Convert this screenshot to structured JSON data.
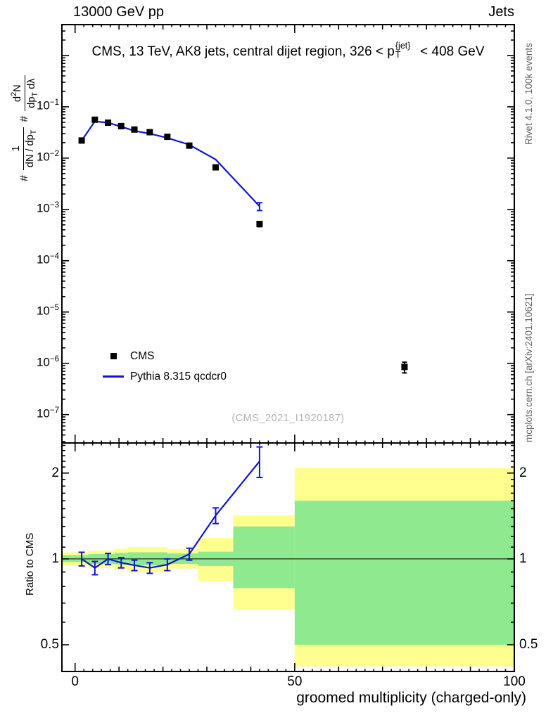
{
  "header": {
    "left": "13000 GeV pp",
    "right": "Jets"
  },
  "titles": {
    "main_prefix": "CMS, 13 TeV, AK8 jets, central dijet region, 326 < p",
    "main_p_sup": "{jet}",
    "main_p_sub": "T",
    "main_suffix": " < 408 GeV",
    "watermark": "(CMS_2021_I1920187)",
    "x_axis": "groomed multiplicity (charged-only)",
    "ratio_y_axis": "Ratio to CMS",
    "credit_top": "Rivet 4.1.0, 100k events",
    "credit_bottom": "mcplots.cern.ch [arXiv:2401.10621]"
  },
  "y_axis_label": {
    "hash1": "#",
    "frac1_num": "1",
    "frac1_den_a": "dN / dp",
    "frac1_den_sub": "T",
    "hash2": "#",
    "frac2_num_a": "d",
    "frac2_num_sup": "2",
    "frac2_num_b": "N",
    "frac2_den_a": "dp",
    "frac2_den_sub": "T",
    "frac2_den_b": " dλ"
  },
  "legend": [
    {
      "label": "CMS",
      "type": "marker"
    },
    {
      "label": "Pythia 8.315 qcdcr0",
      "type": "line"
    }
  ],
  "colors": {
    "model": "#1414cc",
    "data": "#000000",
    "band_outer": "#ffff8f",
    "band_inner": "#8fe98f",
    "watermark": "#b4b4b4",
    "credits": "#666666"
  },
  "chart_data": [
    {
      "type": "line",
      "panel": "main",
      "title": "CMS, 13 TeV, AK8 jets, central dijet region, 326 < pT{jet} < 408 GeV",
      "yscale": "log",
      "xlim": [
        -3,
        100
      ],
      "ylim": [
        2.8e-08,
        4.0
      ],
      "ytick_exponents": [
        -1,
        -2,
        -3,
        -4,
        -5,
        -6,
        -7
      ],
      "xticks": [
        0,
        50,
        100
      ],
      "series": [
        {
          "name": "CMS",
          "type": "scatter",
          "marker": "filled-square",
          "color": "#000000",
          "x": [
            1.5,
            4.5,
            7.5,
            10.5,
            13.5,
            17,
            21,
            26,
            32,
            42,
            75
          ],
          "y": [
            0.022,
            0.056,
            0.049,
            0.042,
            0.036,
            0.032,
            0.026,
            0.0175,
            0.0066,
            0.00052,
            8.5e-07
          ],
          "yerr": [
            0.0012,
            0.0018,
            0.0015,
            0.0013,
            0.0011,
            0.001,
            0.0009,
            0.0007,
            0.0004,
            6e-05,
            2e-07
          ]
        },
        {
          "name": "Pythia 8.315 qcdcr0",
          "type": "line",
          "color": "#1414cc",
          "x": [
            1.5,
            4.5,
            7.5,
            10.5,
            13.5,
            17,
            21,
            26,
            32,
            42
          ],
          "y": [
            0.022,
            0.052,
            0.049,
            0.041,
            0.034,
            0.03,
            0.0248,
            0.0182,
            0.0094,
            0.00115
          ],
          "yerr": [
            0,
            0,
            0,
            0,
            0,
            0,
            0,
            0,
            0,
            0.0002
          ]
        }
      ]
    },
    {
      "type": "ratio",
      "panel": "ratio",
      "yscale": "log",
      "xlim": [
        -3,
        100
      ],
      "ylim": [
        0.403,
        2.55
      ],
      "yticks": [
        0.5,
        1,
        2
      ],
      "xticks": [
        0,
        50,
        100
      ],
      "reference_y": 1,
      "bands": [
        {
          "x0": -3,
          "x1": 3,
          "outer": [
            0.95,
            1.055
          ],
          "inner": [
            0.975,
            1.03
          ]
        },
        {
          "x0": 3,
          "x1": 9,
          "outer": [
            0.93,
            1.07
          ],
          "inner": [
            0.96,
            1.04
          ]
        },
        {
          "x0": 9,
          "x1": 12,
          "outer": [
            0.915,
            1.085
          ],
          "inner": [
            0.955,
            1.05
          ]
        },
        {
          "x0": 12,
          "x1": 21,
          "outer": [
            0.9,
            1.1
          ],
          "inner": [
            0.95,
            1.055
          ]
        },
        {
          "x0": 21,
          "x1": 28,
          "outer": [
            0.925,
            1.08
          ],
          "inner": [
            0.96,
            1.045
          ]
        },
        {
          "x0": 28,
          "x1": 36,
          "outer": [
            0.835,
            1.185
          ],
          "inner": [
            0.945,
            1.06
          ]
        },
        {
          "x0": 36,
          "x1": 50,
          "outer": [
            0.665,
            1.42
          ],
          "inner": [
            0.79,
            1.3
          ]
        },
        {
          "x0": 50,
          "x1": 100,
          "outer": [
            0.42,
            2.08
          ],
          "inner": [
            0.5,
            1.6
          ]
        }
      ],
      "series": [
        {
          "name": "Pythia 8.315 qcdcr0 / CMS",
          "type": "line",
          "color": "#1414cc",
          "x": [
            1.5,
            4.5,
            7.5,
            10.5,
            13.5,
            17,
            21,
            26,
            32,
            42
          ],
          "y": [
            1.0,
            0.93,
            1.0,
            0.97,
            0.95,
            0.93,
            0.955,
            1.04,
            1.42,
            2.2
          ],
          "yerr": [
            0.055,
            0.05,
            0.045,
            0.04,
            0.04,
            0.04,
            0.045,
            0.05,
            0.09,
            0.27
          ]
        }
      ]
    }
  ]
}
